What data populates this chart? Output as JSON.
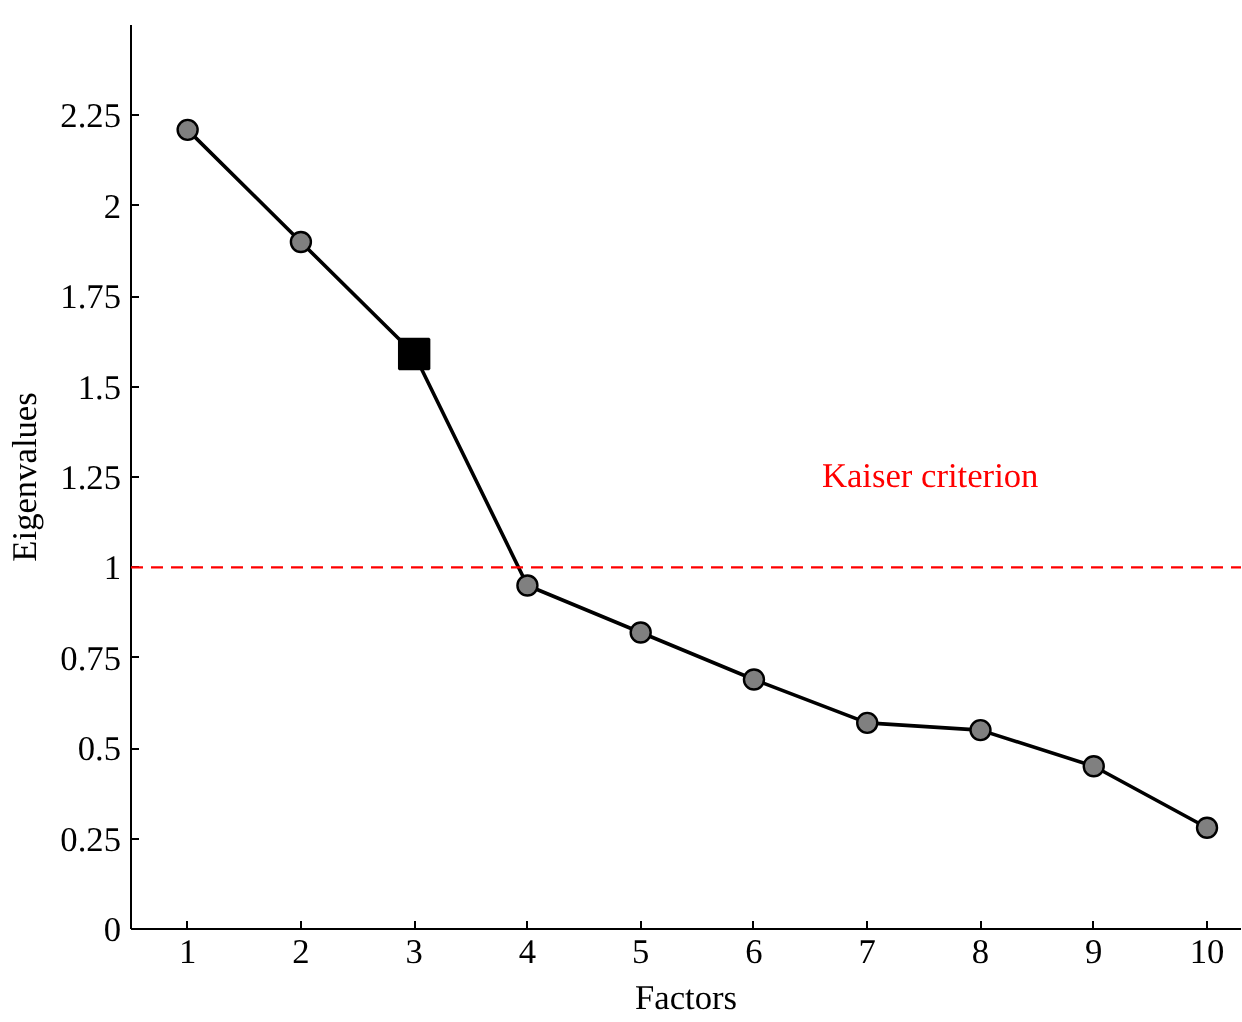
{
  "chart_data": {
    "type": "line",
    "xlabel": "Factors",
    "ylabel": "Eigenvalues",
    "xlim": [
      0.5,
      10.3
    ],
    "ylim": [
      0,
      2.5
    ],
    "xticks": [
      1,
      2,
      3,
      4,
      5,
      6,
      7,
      8,
      9,
      10
    ],
    "yticks": [
      0,
      0.25,
      0.5,
      0.75,
      1,
      1.25,
      1.5,
      1.75,
      2,
      2.25
    ],
    "grid": false,
    "series": [
      {
        "color": "#000000",
        "marker": "none",
        "x": [
          1,
          2,
          3,
          4,
          5,
          6,
          7,
          8,
          9,
          10
        ],
        "values": [
          2.21,
          1.9,
          1.59,
          0.95,
          0.82,
          0.69,
          0.57,
          0.55,
          0.45,
          0.28
        ]
      },
      {
        "type": "scatter",
        "color": "#808080",
        "marker": "circle",
        "x": [
          1,
          2,
          4,
          5,
          6,
          7,
          8,
          9,
          10
        ],
        "values": [
          2.21,
          1.9,
          0.95,
          0.82,
          0.69,
          0.57,
          0.55,
          0.45,
          0.28
        ]
      },
      {
        "type": "scatter",
        "color": "#000000",
        "marker": "square",
        "x": [
          3
        ],
        "values": [
          1.59
        ]
      }
    ],
    "ref_lines": [
      {
        "axis": "y",
        "value": 1,
        "label": "Kaiser criterion",
        "color": "#ff0000",
        "line_style": "dashed"
      }
    ]
  }
}
